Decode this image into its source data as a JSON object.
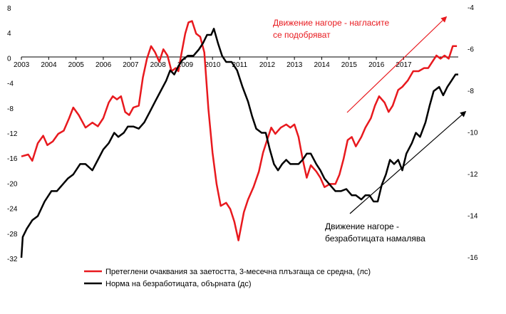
{
  "chart_data": {
    "type": "line",
    "x_ticks": [
      "2003",
      "2004",
      "2005",
      "2006",
      "2007",
      "2008",
      "2009",
      "2010",
      "2011",
      "2012",
      "2013",
      "2014",
      "2015",
      "2016",
      "2017"
    ],
    "y_left": {
      "ticks": [
        "8",
        "4",
        "0",
        "-4",
        "-8",
        "-12",
        "-16",
        "-20",
        "-24",
        "-28",
        "-32"
      ],
      "lim": [
        -32,
        8
      ]
    },
    "y_right": {
      "ticks": [
        "-4",
        "-6",
        "-8",
        "-10",
        "-12",
        "-14",
        "-16"
      ],
      "lim": [
        -16,
        -4
      ],
      "inverted": true
    },
    "grid": false,
    "legend_position": "bottom",
    "series": [
      {
        "name": "Претеглени очаквания за заетостта, 3-месечна плъзгаща се средна, (лс)",
        "axis": "left",
        "color": "#e8191e",
        "points": [
          [
            2003.0,
            -15.6
          ],
          [
            2003.25,
            -15.3
          ],
          [
            2003.4,
            -16.3
          ],
          [
            2003.6,
            -13.5
          ],
          [
            2003.8,
            -12.3
          ],
          [
            2003.95,
            -13.8
          ],
          [
            2004.15,
            -13.2
          ],
          [
            2004.35,
            -12.0
          ],
          [
            2004.55,
            -11.5
          ],
          [
            2004.75,
            -9.5
          ],
          [
            2004.9,
            -7.8
          ],
          [
            2005.1,
            -9.0
          ],
          [
            2005.35,
            -11.0
          ],
          [
            2005.6,
            -10.2
          ],
          [
            2005.8,
            -10.8
          ],
          [
            2006.0,
            -9.5
          ],
          [
            2006.2,
            -7.0
          ],
          [
            2006.35,
            -6.0
          ],
          [
            2006.5,
            -6.5
          ],
          [
            2006.65,
            -6.0
          ],
          [
            2006.8,
            -8.5
          ],
          [
            2006.95,
            -9.0
          ],
          [
            2007.1,
            -7.8
          ],
          [
            2007.3,
            -7.5
          ],
          [
            2007.45,
            -3.0
          ],
          [
            2007.6,
            0.0
          ],
          [
            2007.75,
            2.0
          ],
          [
            2007.9,
            1.0
          ],
          [
            2008.05,
            -0.5
          ],
          [
            2008.2,
            1.5
          ],
          [
            2008.35,
            0.5
          ],
          [
            2008.5,
            -2.0
          ],
          [
            2008.65,
            -1.5
          ],
          [
            2008.75,
            -2.0
          ],
          [
            2008.85,
            0.5
          ],
          [
            2009.0,
            4.0
          ],
          [
            2009.12,
            5.8
          ],
          [
            2009.25,
            6.0
          ],
          [
            2009.4,
            4.0
          ],
          [
            2009.55,
            3.5
          ],
          [
            2009.7,
            1.0
          ],
          [
            2009.85,
            -8.0
          ],
          [
            2010.0,
            -15.0
          ],
          [
            2010.15,
            -20.0
          ],
          [
            2010.3,
            -23.5
          ],
          [
            2010.5,
            -23.0
          ],
          [
            2010.65,
            -24.0
          ],
          [
            2010.8,
            -26.0
          ],
          [
            2010.95,
            -29.0
          ],
          [
            2011.15,
            -24.5
          ],
          [
            2011.3,
            -22.5
          ],
          [
            2011.5,
            -20.5
          ],
          [
            2011.7,
            -18.0
          ],
          [
            2011.85,
            -15.0
          ],
          [
            2012.0,
            -13.0
          ],
          [
            2012.15,
            -11.0
          ],
          [
            2012.3,
            -12.0
          ],
          [
            2012.5,
            -11.0
          ],
          [
            2012.7,
            -10.5
          ],
          [
            2012.85,
            -11.0
          ],
          [
            2013.0,
            -10.5
          ],
          [
            2013.15,
            -12.5
          ],
          [
            2013.3,
            -16.0
          ],
          [
            2013.45,
            -19.0
          ],
          [
            2013.6,
            -17.0
          ],
          [
            2013.8,
            -18.0
          ],
          [
            2013.95,
            -19.0
          ],
          [
            2014.1,
            -20.5
          ],
          [
            2014.3,
            -20.0
          ],
          [
            2014.5,
            -20.0
          ],
          [
            2014.65,
            -18.5
          ],
          [
            2014.8,
            -16.0
          ],
          [
            2014.95,
            -13.0
          ],
          [
            2015.1,
            -12.5
          ],
          [
            2015.25,
            -14.0
          ],
          [
            2015.45,
            -12.5
          ],
          [
            2015.6,
            -11.0
          ],
          [
            2015.8,
            -9.5
          ],
          [
            2015.95,
            -7.5
          ],
          [
            2016.1,
            -6.0
          ],
          [
            2016.3,
            -7.0
          ],
          [
            2016.45,
            -8.5
          ],
          [
            2016.6,
            -7.5
          ],
          [
            2016.8,
            -5.0
          ],
          [
            2016.95,
            -4.5
          ],
          [
            2017.15,
            -3.5
          ],
          [
            2017.35,
            -2.0
          ],
          [
            2017.55,
            -2.0
          ],
          [
            2017.75,
            -1.5
          ],
          [
            2017.9,
            -1.5
          ],
          [
            2018.05,
            -0.5
          ],
          [
            2018.2,
            0.5
          ],
          [
            2018.35,
            0.0
          ],
          [
            2018.5,
            0.5
          ],
          [
            2018.65,
            0.0
          ],
          [
            2018.8,
            2.0
          ],
          [
            2018.95,
            2.0
          ]
        ]
      },
      {
        "name": "Норма на безработицата, обърната (дс)",
        "axis": "right",
        "color": "#000000",
        "points": [
          [
            2003.0,
            -16.0
          ],
          [
            2003.05,
            -15.0
          ],
          [
            2003.2,
            -14.6
          ],
          [
            2003.4,
            -14.2
          ],
          [
            2003.6,
            -14.0
          ],
          [
            2003.85,
            -13.3
          ],
          [
            2004.1,
            -12.8
          ],
          [
            2004.3,
            -12.8
          ],
          [
            2004.5,
            -12.5
          ],
          [
            2004.7,
            -12.2
          ],
          [
            2004.9,
            -12.0
          ],
          [
            2005.15,
            -11.5
          ],
          [
            2005.35,
            -11.5
          ],
          [
            2005.6,
            -11.8
          ],
          [
            2005.8,
            -11.3
          ],
          [
            2006.0,
            -10.8
          ],
          [
            2006.2,
            -10.5
          ],
          [
            2006.4,
            -10.0
          ],
          [
            2006.55,
            -10.2
          ],
          [
            2006.75,
            -10.0
          ],
          [
            2006.9,
            -9.7
          ],
          [
            2007.1,
            -9.7
          ],
          [
            2007.3,
            -9.8
          ],
          [
            2007.5,
            -9.5
          ],
          [
            2007.7,
            -9.0
          ],
          [
            2007.9,
            -8.5
          ],
          [
            2008.1,
            -8.0
          ],
          [
            2008.3,
            -7.5
          ],
          [
            2008.45,
            -7.0
          ],
          [
            2008.6,
            -7.2
          ],
          [
            2008.75,
            -6.8
          ],
          [
            2008.9,
            -6.5
          ],
          [
            2009.1,
            -6.3
          ],
          [
            2009.3,
            -6.3
          ],
          [
            2009.5,
            -6.0
          ],
          [
            2009.65,
            -5.7
          ],
          [
            2009.8,
            -5.3
          ],
          [
            2009.95,
            -5.3
          ],
          [
            2010.05,
            -5.0
          ],
          [
            2010.2,
            -5.7
          ],
          [
            2010.35,
            -6.3
          ],
          [
            2010.5,
            -6.6
          ],
          [
            2010.7,
            -6.6
          ],
          [
            2010.9,
            -7.0
          ],
          [
            2011.1,
            -7.8
          ],
          [
            2011.3,
            -8.5
          ],
          [
            2011.45,
            -9.2
          ],
          [
            2011.6,
            -9.8
          ],
          [
            2011.8,
            -10.0
          ],
          [
            2011.95,
            -10.0
          ],
          [
            2012.1,
            -10.8
          ],
          [
            2012.25,
            -11.5
          ],
          [
            2012.4,
            -11.8
          ],
          [
            2012.55,
            -11.5
          ],
          [
            2012.7,
            -11.3
          ],
          [
            2012.85,
            -11.5
          ],
          [
            2013.0,
            -11.5
          ],
          [
            2013.15,
            -11.5
          ],
          [
            2013.3,
            -11.3
          ],
          [
            2013.45,
            -11.0
          ],
          [
            2013.6,
            -11.0
          ],
          [
            2013.8,
            -11.5
          ],
          [
            2013.95,
            -11.8
          ],
          [
            2014.1,
            -12.2
          ],
          [
            2014.3,
            -12.5
          ],
          [
            2014.5,
            -12.8
          ],
          [
            2014.7,
            -12.8
          ],
          [
            2014.9,
            -12.7
          ],
          [
            2015.1,
            -13.0
          ],
          [
            2015.25,
            -13.0
          ],
          [
            2015.45,
            -13.2
          ],
          [
            2015.6,
            -13.0
          ],
          [
            2015.75,
            -13.0
          ],
          [
            2015.9,
            -13.3
          ],
          [
            2016.05,
            -13.3
          ],
          [
            2016.2,
            -12.5
          ],
          [
            2016.35,
            -12.0
          ],
          [
            2016.5,
            -11.3
          ],
          [
            2016.65,
            -11.5
          ],
          [
            2016.8,
            -11.3
          ],
          [
            2016.95,
            -11.8
          ],
          [
            2017.1,
            -11.0
          ],
          [
            2017.3,
            -10.5
          ],
          [
            2017.45,
            -10.0
          ],
          [
            2017.6,
            -10.2
          ],
          [
            2017.8,
            -9.5
          ],
          [
            2017.95,
            -8.7
          ],
          [
            2018.1,
            -8.0
          ],
          [
            2018.3,
            -7.8
          ],
          [
            2018.45,
            -8.2
          ],
          [
            2018.6,
            -7.8
          ],
          [
            2018.75,
            -7.5
          ],
          [
            2018.9,
            -7.2
          ],
          [
            2019.0,
            -7.2
          ]
        ]
      }
    ],
    "annotations": [
      {
        "text_lines": [
          "Движение нагоре - нагласите",
          "се подобряват"
        ],
        "color": "#e8191e"
      },
      {
        "text_lines": [
          "Движение нагоре -",
          "безработицата намалява"
        ],
        "color": "#000000"
      }
    ],
    "arrows": [
      {
        "color": "#e8191e"
      },
      {
        "color": "#000000"
      }
    ]
  }
}
